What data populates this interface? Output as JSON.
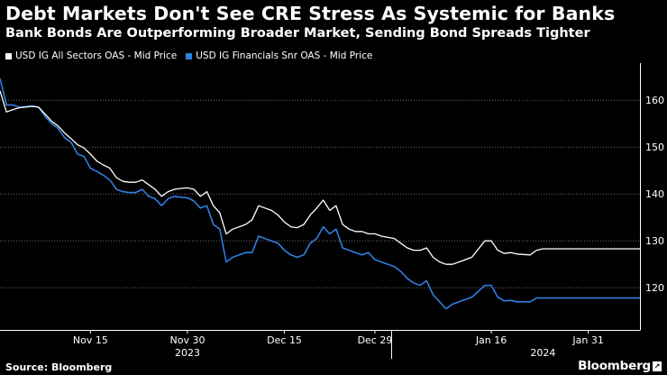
{
  "header": {
    "title": "Debt Markets Don't See CRE Stress As Systemic for Banks",
    "subtitle": "Bank Bonds Are Outperforming Broader Market, Sending Bond Spreads Tighter"
  },
  "footer": {
    "source": "Source: Bloomberg",
    "brand": "Bloomberg"
  },
  "chart_data": {
    "type": "line",
    "title": "Debt Markets Don't See CRE Stress As Systemic for Banks",
    "subtitle": "Bank Bonds Are Outperforming Broader Market, Sending Bond Spreads Tighter",
    "xlabel": "",
    "ylabel": "",
    "x_axis": {
      "type": "date",
      "range": [
        "2023-11-01",
        "2024-02-08"
      ]
    },
    "y_axis": {
      "range": [
        111,
        166
      ],
      "ticks": [
        120,
        130,
        140,
        150,
        160
      ],
      "position": "right",
      "grid": true
    },
    "x_ticks": [
      {
        "date": "2023-11-15",
        "label": "Nov 15"
      },
      {
        "date": "2023-11-30",
        "label": "Nov 30"
      },
      {
        "date": "2023-12-15",
        "label": "Dec 15"
      },
      {
        "date": "2023-12-29",
        "label": "Dec 29"
      },
      {
        "date": "2024-01-16",
        "label": "Jan 16"
      },
      {
        "date": "2024-01-31",
        "label": "Jan 31"
      }
    ],
    "year_labels": [
      {
        "date": "2023-11-30",
        "label": "2023"
      },
      {
        "date": "2024-01-24",
        "label": "2024"
      }
    ],
    "legend_position": "top-left",
    "series": [
      {
        "name": "USD IG All Sectors OAS - Mid Price",
        "color": "#ffffff",
        "points": [
          [
            "2023-11-01",
            162.0
          ],
          [
            "2023-11-02",
            157.5
          ],
          [
            "2023-11-03",
            158.0
          ],
          [
            "2023-11-04",
            158.4
          ],
          [
            "2023-11-06",
            158.7
          ],
          [
            "2023-11-07",
            158.5
          ],
          [
            "2023-11-08",
            157.0
          ],
          [
            "2023-11-09",
            155.5
          ],
          [
            "2023-11-10",
            154.5
          ],
          [
            "2023-11-11",
            153.0
          ],
          [
            "2023-11-12",
            151.8
          ],
          [
            "2023-11-13",
            150.5
          ],
          [
            "2023-11-14",
            149.8
          ],
          [
            "2023-11-15",
            148.5
          ],
          [
            "2023-11-16",
            147.0
          ],
          [
            "2023-11-17",
            146.2
          ],
          [
            "2023-11-18",
            145.5
          ],
          [
            "2023-11-19",
            143.5
          ],
          [
            "2023-11-20",
            142.7
          ],
          [
            "2023-11-21",
            142.5
          ],
          [
            "2023-11-22",
            142.5
          ],
          [
            "2023-11-23",
            143.0
          ],
          [
            "2023-11-24",
            142.0
          ],
          [
            "2023-11-25",
            141.0
          ],
          [
            "2023-11-26",
            139.5
          ],
          [
            "2023-11-27",
            140.5
          ],
          [
            "2023-11-28",
            141.0
          ],
          [
            "2023-11-29",
            141.2
          ],
          [
            "2023-11-30",
            141.3
          ],
          [
            "2023-12-01",
            141.0
          ],
          [
            "2023-12-02",
            139.5
          ],
          [
            "2023-12-03",
            140.5
          ],
          [
            "2023-12-04",
            137.5
          ],
          [
            "2023-12-05",
            136.0
          ],
          [
            "2023-12-06",
            131.5
          ],
          [
            "2023-12-07",
            132.5
          ],
          [
            "2023-12-08",
            133.0
          ],
          [
            "2023-12-09",
            133.5
          ],
          [
            "2023-12-10",
            134.5
          ],
          [
            "2023-12-11",
            137.5
          ],
          [
            "2023-12-12",
            137.0
          ],
          [
            "2023-12-13",
            136.5
          ],
          [
            "2023-12-14",
            135.5
          ],
          [
            "2023-12-15",
            134.0
          ],
          [
            "2023-12-16",
            133.0
          ],
          [
            "2023-12-17",
            132.8
          ],
          [
            "2023-12-18",
            133.5
          ],
          [
            "2023-12-19",
            135.5
          ],
          [
            "2023-12-20",
            137.0
          ],
          [
            "2023-12-21",
            138.7
          ],
          [
            "2023-12-22",
            136.5
          ],
          [
            "2023-12-23",
            137.5
          ],
          [
            "2023-12-24",
            133.5
          ],
          [
            "2023-12-25",
            132.5
          ],
          [
            "2023-12-26",
            132.0
          ],
          [
            "2023-12-27",
            132.0
          ],
          [
            "2023-12-28",
            131.5
          ],
          [
            "2023-12-29",
            131.5
          ],
          [
            "2023-12-30",
            131.0
          ],
          [
            "2024-01-01",
            130.5
          ],
          [
            "2024-01-02",
            129.5
          ],
          [
            "2024-01-03",
            128.5
          ],
          [
            "2024-01-04",
            128.0
          ],
          [
            "2024-01-05",
            128.0
          ],
          [
            "2024-01-06",
            128.5
          ],
          [
            "2024-01-07",
            126.5
          ],
          [
            "2024-01-08",
            125.5
          ],
          [
            "2024-01-09",
            125.0
          ],
          [
            "2024-01-10",
            125.0
          ],
          [
            "2024-01-11",
            125.5
          ],
          [
            "2024-01-12",
            126.0
          ],
          [
            "2024-01-13",
            126.5
          ],
          [
            "2024-01-15",
            130.0
          ],
          [
            "2024-01-16",
            130.0
          ],
          [
            "2024-01-17",
            128.0
          ],
          [
            "2024-01-18",
            127.3
          ],
          [
            "2024-01-19",
            127.5
          ],
          [
            "2024-01-20",
            127.2
          ],
          [
            "2024-01-22",
            127.0
          ],
          [
            "2024-01-23",
            128.0
          ],
          [
            "2024-01-24",
            128.3
          ],
          [
            "2024-02-08",
            128.3
          ]
        ]
      },
      {
        "name": "USD IG Financials Snr OAS - Mid Price",
        "color": "#2f7fe0",
        "points": [
          [
            "2023-11-01",
            164.7
          ],
          [
            "2023-11-02",
            159.0
          ],
          [
            "2023-11-03",
            159.0
          ],
          [
            "2023-11-04",
            158.5
          ],
          [
            "2023-11-06",
            158.8
          ],
          [
            "2023-11-07",
            158.5
          ],
          [
            "2023-11-08",
            156.5
          ],
          [
            "2023-11-09",
            155.0
          ],
          [
            "2023-11-10",
            154.0
          ],
          [
            "2023-11-11",
            152.0
          ],
          [
            "2023-11-12",
            151.0
          ],
          [
            "2023-11-13",
            148.5
          ],
          [
            "2023-11-14",
            148.0
          ],
          [
            "2023-11-15",
            145.5
          ],
          [
            "2023-11-16",
            144.8
          ],
          [
            "2023-11-17",
            144.0
          ],
          [
            "2023-11-18",
            143.0
          ],
          [
            "2023-11-19",
            141.0
          ],
          [
            "2023-11-20",
            140.5
          ],
          [
            "2023-11-21",
            140.3
          ],
          [
            "2023-11-22",
            140.3
          ],
          [
            "2023-11-23",
            141.0
          ],
          [
            "2023-11-24",
            139.5
          ],
          [
            "2023-11-25",
            139.0
          ],
          [
            "2023-11-26",
            137.5
          ],
          [
            "2023-11-27",
            139.0
          ],
          [
            "2023-11-28",
            139.5
          ],
          [
            "2023-11-29",
            139.3
          ],
          [
            "2023-11-30",
            139.2
          ],
          [
            "2023-12-01",
            138.5
          ],
          [
            "2023-12-02",
            137.0
          ],
          [
            "2023-12-03",
            137.5
          ],
          [
            "2023-12-04",
            133.5
          ],
          [
            "2023-12-05",
            132.5
          ],
          [
            "2023-12-06",
            125.5
          ],
          [
            "2023-12-07",
            126.5
          ],
          [
            "2023-12-08",
            127.0
          ],
          [
            "2023-12-09",
            127.5
          ],
          [
            "2023-12-10",
            127.5
          ],
          [
            "2023-12-11",
            131.0
          ],
          [
            "2023-12-12",
            130.5
          ],
          [
            "2023-12-13",
            130.0
          ],
          [
            "2023-12-14",
            129.5
          ],
          [
            "2023-12-15",
            128.0
          ],
          [
            "2023-12-16",
            127.0
          ],
          [
            "2023-12-17",
            126.5
          ],
          [
            "2023-12-18",
            127.0
          ],
          [
            "2023-12-19",
            129.5
          ],
          [
            "2023-12-20",
            130.5
          ],
          [
            "2023-12-21",
            133.0
          ],
          [
            "2023-12-22",
            131.5
          ],
          [
            "2023-12-23",
            132.5
          ],
          [
            "2023-12-24",
            128.5
          ],
          [
            "2023-12-25",
            128.0
          ],
          [
            "2023-12-26",
            127.5
          ],
          [
            "2023-12-27",
            127.0
          ],
          [
            "2023-12-28",
            127.5
          ],
          [
            "2023-12-29",
            126.0
          ],
          [
            "2023-12-30",
            125.5
          ],
          [
            "2024-01-01",
            124.5
          ],
          [
            "2024-01-02",
            123.5
          ],
          [
            "2024-01-03",
            122.0
          ],
          [
            "2024-01-04",
            121.0
          ],
          [
            "2024-01-05",
            120.5
          ],
          [
            "2024-01-06",
            121.5
          ],
          [
            "2024-01-07",
            118.5
          ],
          [
            "2024-01-08",
            117.0
          ],
          [
            "2024-01-09",
            115.5
          ],
          [
            "2024-01-10",
            116.5
          ],
          [
            "2024-01-11",
            117.0
          ],
          [
            "2024-01-12",
            117.5
          ],
          [
            "2024-01-13",
            118.0
          ],
          [
            "2024-01-15",
            120.5
          ],
          [
            "2024-01-16",
            120.5
          ],
          [
            "2024-01-17",
            118.0
          ],
          [
            "2024-01-18",
            117.2
          ],
          [
            "2024-01-19",
            117.3
          ],
          [
            "2024-01-20",
            117.0
          ],
          [
            "2024-01-22",
            117.0
          ],
          [
            "2024-01-23",
            117.8
          ],
          [
            "2024-01-24",
            117.8
          ],
          [
            "2024-02-08",
            117.8
          ]
        ]
      }
    ]
  }
}
